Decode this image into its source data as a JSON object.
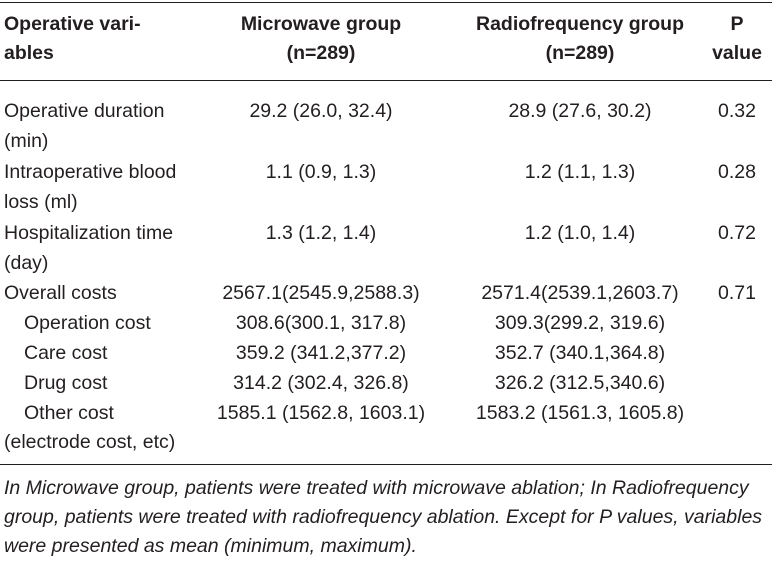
{
  "header": {
    "variable": [
      "Operative vari-",
      "ables"
    ],
    "microwave": [
      "Microwave group",
      "(n=289)"
    ],
    "radiofrequency": [
      "Radiofrequency group",
      "(n=289)"
    ],
    "p": [
      "P",
      "value"
    ]
  },
  "rows": [
    {
      "label": [
        "Operative duration",
        "(min)"
      ],
      "microwave": "29.2 (26.0, 32.4)",
      "radiofrequency": "28.9 (27.6, 30.2)",
      "p": "0.32"
    },
    {
      "label": [
        "Intraoperative blood",
        "loss (ml)"
      ],
      "microwave": "1.1 (0.9, 1.3)",
      "radiofrequency": "1.2 (1.1, 1.3)",
      "p": "0.28"
    },
    {
      "label": [
        "Hospitalization time",
        "(day)"
      ],
      "microwave": "1.3 (1.2, 1.4)",
      "radiofrequency": "1.2 (1.0, 1.4)",
      "p": "0.72"
    },
    {
      "label": [
        "Overall costs"
      ],
      "microwave": "2567.1(2545.9,2588.3)",
      "radiofrequency": "2571.4(2539.1,2603.7)",
      "p": "0.71"
    },
    {
      "label": [
        "Operation cost"
      ],
      "microwave": "308.6(300.1, 317.8)",
      "radiofrequency": "309.3(299.2, 319.6)",
      "p": ""
    },
    {
      "label": [
        "Care cost"
      ],
      "microwave": "359.2 (341.2,377.2)",
      "radiofrequency": "352.7 (340.1,364.8)",
      "p": ""
    },
    {
      "label": [
        "Drug cost"
      ],
      "microwave": "314.2 (302.4, 326.8)",
      "radiofrequency": "326.2 (312.5,340.6)",
      "p": ""
    },
    {
      "label": [
        "Other cost",
        "(electrode cost, etc)"
      ],
      "microwave": "1585.1 (1562.8, 1603.1)",
      "radiofrequency": "1583.2 (1561.3, 1605.8)",
      "p": ""
    }
  ],
  "footnote": "In Microwave group, patients were treated with microwave ablation; In Radiofrequency group, patients were treated with radiofrequency ablation. Except for P values, variables were presented as mean (minimum, maximum)."
}
